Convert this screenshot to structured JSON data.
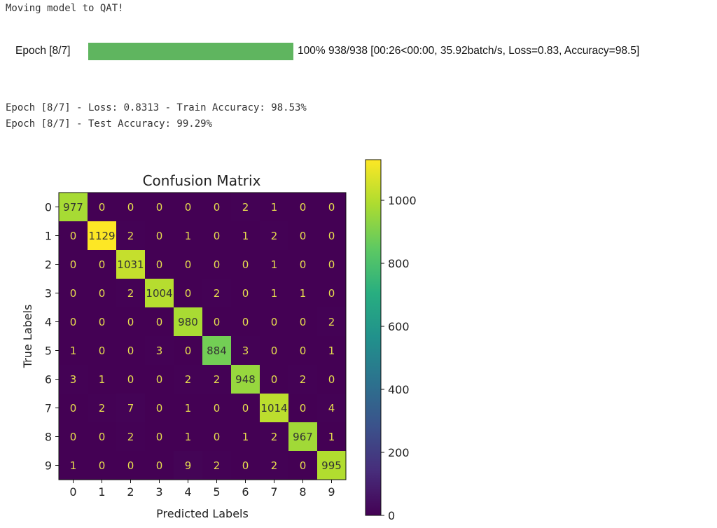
{
  "output": {
    "status_line": "Moving model to QAT!",
    "progress": {
      "label": "Epoch [8/7]",
      "fraction": 1.0,
      "text": "100% 938/938 [00:26<00:00, 35.92batch/s, Loss=0.83, Accuracy=98.5]"
    },
    "log_lines": [
      "Epoch [8/7] - Loss: 0.8313 - Train Accuracy: 98.53%",
      "Epoch [8/7] - Test Accuracy: 99.29%"
    ]
  },
  "chart_data": {
    "type": "heatmap",
    "title": "Confusion Matrix",
    "xlabel": "Predicted Labels",
    "ylabel": "True Labels",
    "x_ticks": [
      "0",
      "1",
      "2",
      "3",
      "4",
      "5",
      "6",
      "7",
      "8",
      "9"
    ],
    "y_ticks": [
      "0",
      "1",
      "2",
      "3",
      "4",
      "5",
      "6",
      "7",
      "8",
      "9"
    ],
    "matrix": [
      [
        977,
        0,
        0,
        0,
        0,
        0,
        2,
        1,
        0,
        0
      ],
      [
        0,
        1129,
        2,
        0,
        1,
        0,
        1,
        2,
        0,
        0
      ],
      [
        0,
        0,
        1031,
        0,
        0,
        0,
        0,
        1,
        0,
        0
      ],
      [
        0,
        0,
        2,
        1004,
        0,
        2,
        0,
        1,
        1,
        0
      ],
      [
        0,
        0,
        0,
        0,
        980,
        0,
        0,
        0,
        0,
        2
      ],
      [
        1,
        0,
        0,
        3,
        0,
        884,
        3,
        0,
        0,
        1
      ],
      [
        3,
        1,
        0,
        0,
        2,
        2,
        948,
        0,
        2,
        0
      ],
      [
        0,
        2,
        7,
        0,
        1,
        0,
        0,
        1014,
        0,
        4
      ],
      [
        0,
        0,
        2,
        0,
        1,
        0,
        1,
        2,
        967,
        1
      ],
      [
        1,
        0,
        0,
        0,
        9,
        2,
        0,
        2,
        0,
        995
      ]
    ],
    "colorbar": {
      "colormap": "viridis",
      "range": [
        0,
        1129
      ],
      "ticks": [
        "0",
        "200",
        "400",
        "600",
        "800",
        "1000"
      ]
    }
  }
}
